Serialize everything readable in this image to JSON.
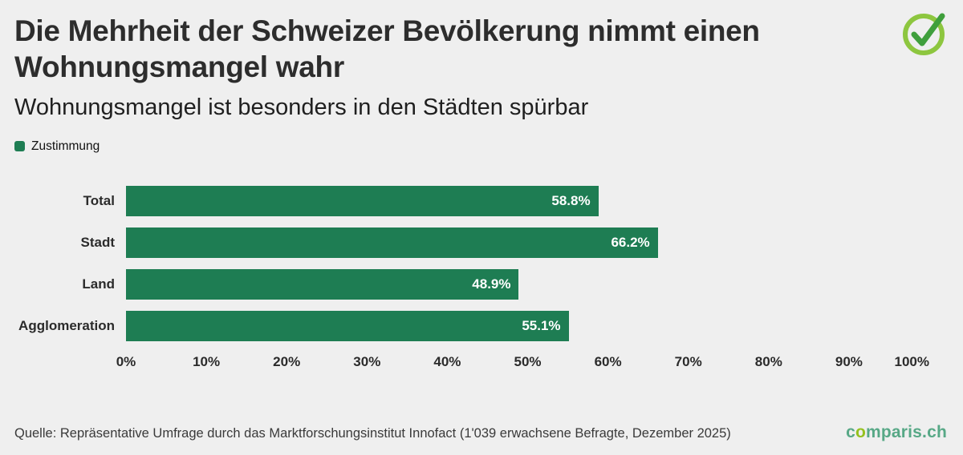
{
  "header": {
    "title": "Die Mehrheit der Schweizer Bevölkerung nimmt einen Wohnungsmangel wahr",
    "subtitle": "Wohnungsmangel ist besonders in den Städten spürbar"
  },
  "legend": {
    "label": "Zustimmung"
  },
  "chart_data": {
    "type": "bar",
    "orientation": "horizontal",
    "title": "Die Mehrheit der Schweizer Bevölkerung nimmt einen Wohnungsmangel wahr",
    "subtitle": "Wohnungsmangel ist besonders in den Städten spürbar",
    "series_name": "Zustimmung",
    "categories": [
      "Total",
      "Stadt",
      "Land",
      "Agglomeration"
    ],
    "values": [
      58.8,
      66.2,
      48.9,
      55.1
    ],
    "value_labels": [
      "58.8%",
      "66.2%",
      "48.9%",
      "55.1%"
    ],
    "xlim": [
      0,
      100
    ],
    "x_ticks": [
      "0%",
      "10%",
      "20%",
      "30%",
      "40%",
      "50%",
      "60%",
      "70%",
      "80%",
      "90%",
      "100%"
    ],
    "grid": false,
    "legend_position": "top-left"
  },
  "footer": {
    "source": "Quelle: Repräsentative Umfrage durch das Marktforschungsinstitut Innofact (1'039 erwachsene Befragte, Dezember 2025)",
    "logo": {
      "prefix": "c",
      "o": "o",
      "suffix": "mparis.ch"
    }
  },
  "colors": {
    "background": "#EFEFEF",
    "bar": "#1E7D53",
    "badge_circle": "#8DC63F",
    "badge_check": "#3F9F3C",
    "logo_text": "#57A886",
    "logo_o": "#95C11F"
  }
}
